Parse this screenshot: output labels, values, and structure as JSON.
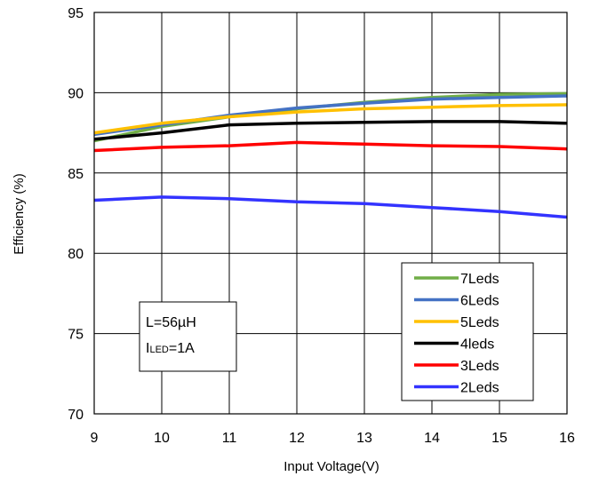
{
  "chart_data": {
    "type": "line",
    "xlabel": "Input Voltage(V)",
    "ylabel": "Efficiency (%)",
    "xlim": [
      9,
      16
    ],
    "ylim": [
      70,
      95
    ],
    "x_ticks": [
      9,
      10,
      11,
      12,
      13,
      14,
      15,
      16
    ],
    "y_ticks": [
      70,
      75,
      80,
      85,
      90,
      95
    ],
    "grid": true,
    "legend_position": "bottom-right",
    "annotation": {
      "line1": "L=56µH",
      "line2_main": "I",
      "line2_sub": "LED",
      "line2_rest": "=1A"
    },
    "x": [
      9,
      10,
      11,
      12,
      13,
      14,
      15,
      16
    ],
    "series": [
      {
        "name": "7Leds",
        "color": "#70AD47",
        "values": [
          87.0,
          87.9,
          88.5,
          89.0,
          89.4,
          89.7,
          89.9,
          89.95
        ]
      },
      {
        "name": "6Leds",
        "color": "#4472C4",
        "values": [
          87.4,
          88.0,
          88.6,
          89.05,
          89.35,
          89.6,
          89.7,
          89.8
        ]
      },
      {
        "name": "5Leds",
        "color": "#FFC000",
        "values": [
          87.5,
          88.1,
          88.5,
          88.8,
          89.0,
          89.1,
          89.2,
          89.25
        ]
      },
      {
        "name": "4leds",
        "color": "#000000",
        "values": [
          87.1,
          87.5,
          88.0,
          88.1,
          88.15,
          88.2,
          88.2,
          88.1
        ]
      },
      {
        "name": "3Leds",
        "color": "#FF0000",
        "values": [
          86.4,
          86.6,
          86.7,
          86.9,
          86.8,
          86.7,
          86.65,
          86.5
        ]
      },
      {
        "name": "2Leds",
        "color": "#3333FF",
        "values": [
          83.3,
          83.5,
          83.4,
          83.2,
          83.1,
          82.85,
          82.6,
          82.25
        ]
      }
    ]
  }
}
